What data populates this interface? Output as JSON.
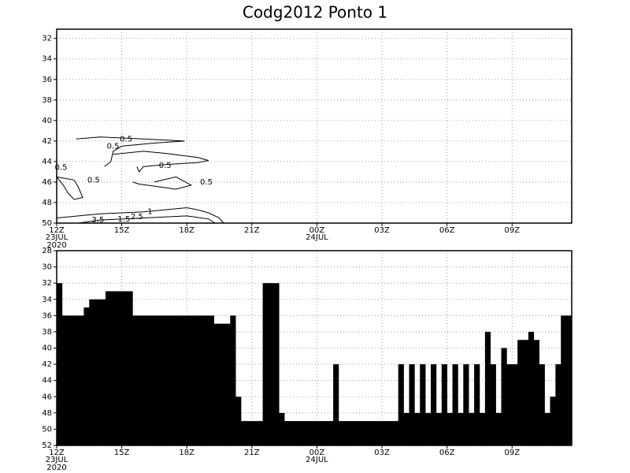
{
  "chart_data": [
    {
      "type": "contour",
      "title": "Codg2012  Ponto 1",
      "xlim": [
        0,
        23.75
      ],
      "ylim": [
        31.1,
        50
      ],
      "xticks": [
        {
          "value": 0,
          "label": "12Z"
        },
        {
          "value": 3,
          "label": "15Z"
        },
        {
          "value": 6,
          "label": "18Z"
        },
        {
          "value": 9,
          "label": "21Z"
        },
        {
          "value": 12,
          "label": "00Z"
        },
        {
          "value": 15,
          "label": "03Z"
        },
        {
          "value": 18,
          "label": "06Z"
        },
        {
          "value": 21,
          "label": "09Z"
        }
      ],
      "x_date_labels": [
        {
          "value": 0,
          "label": "23JUL"
        },
        {
          "value": 12,
          "label": "24JUL"
        }
      ],
      "x_year_label": {
        "value": 0,
        "label": "2020"
      },
      "yticks": [
        32,
        34,
        36,
        38,
        40,
        42,
        44,
        46,
        48,
        50
      ],
      "grid": true,
      "contours": [
        {
          "x": [
            0.9,
            2,
            4,
            5.9,
            4.5,
            3,
            2.6,
            2.5,
            2.2
          ],
          "y": [
            41.8,
            41.6,
            41.8,
            42,
            42.2,
            42.5,
            43,
            44,
            44.5
          ]
        },
        {
          "x": [
            2.6,
            4,
            5,
            6.5,
            7,
            6.5,
            5,
            4,
            3.8,
            3.7
          ],
          "y": [
            43.3,
            43,
            43.2,
            43.6,
            43.9,
            44.1,
            44.3,
            44.5,
            45,
            44.5
          ]
        },
        {
          "x": [
            0,
            0.8,
            1,
            1.2,
            0.8,
            0.5,
            0.3,
            0
          ],
          "y": [
            45.5,
            45.8,
            46.5,
            47.5,
            47.7,
            47,
            46.3,
            45.5
          ]
        },
        {
          "x": [
            4.5,
            5.5,
            6.2,
            5.5,
            4.5,
            3.8,
            3.5
          ],
          "y": [
            46,
            45.5,
            46.3,
            46.7,
            46.4,
            46.2,
            46
          ]
        },
        {
          "x": [
            0,
            1,
            2,
            3,
            4,
            5,
            6,
            6.5,
            7,
            7.5,
            7.7
          ],
          "y": [
            49.5,
            49.3,
            49.1,
            49,
            48.9,
            48.7,
            48.5,
            48.7,
            49,
            49.5,
            50
          ]
        },
        {
          "x": [
            1,
            2,
            4,
            6,
            7,
            7.3
          ],
          "y": [
            50,
            49.7,
            49.5,
            49.3,
            49.6,
            50
          ]
        }
      ],
      "contour_labels": [
        {
          "text": "0.5",
          "x": 3.2,
          "y": 41.8
        },
        {
          "text": "0.5",
          "x": 2.6,
          "y": 42.5
        },
        {
          "text": "0.5",
          "x": 5,
          "y": 44.4
        },
        {
          "text": "0.5",
          "x": 6.9,
          "y": 46
        },
        {
          "text": "0.5",
          "x": 1.7,
          "y": 45.8
        },
        {
          "text": "0.5",
          "x": 0.2,
          "y": 44.6
        },
        {
          "text": "1",
          "x": 4.3,
          "y": 48.9
        },
        {
          "text": "3.5",
          "x": 1.9,
          "y": 49.7
        },
        {
          "text": "1.5",
          "x": 3.1,
          "y": 49.6
        },
        {
          "text": "2.5",
          "x": 3.7,
          "y": 49.4
        }
      ]
    },
    {
      "type": "bar",
      "xlim": [
        0,
        23.75
      ],
      "ylim": [
        28,
        52
      ],
      "xticks": [
        {
          "value": 0,
          "label": "12Z"
        },
        {
          "value": 3,
          "label": "15Z"
        },
        {
          "value": 6,
          "label": "18Z"
        },
        {
          "value": 9,
          "label": "21Z"
        },
        {
          "value": 12,
          "label": "00Z"
        },
        {
          "value": 15,
          "label": "03Z"
        },
        {
          "value": 18,
          "label": "06Z"
        },
        {
          "value": 21,
          "label": "09Z"
        }
      ],
      "x_date_labels": [
        {
          "value": 0,
          "label": "23JUL"
        },
        {
          "value": 12,
          "label": "24JUL"
        }
      ],
      "x_year_label": {
        "value": 0,
        "label": "2020"
      },
      "yticks": [
        28,
        30,
        32,
        34,
        36,
        38,
        40,
        42,
        44,
        46,
        48,
        50,
        52
      ],
      "grid": true,
      "color": "#000000",
      "x": [
        0,
        0.25,
        0.5,
        0.75,
        1,
        1.25,
        1.5,
        1.75,
        2,
        2.25,
        2.5,
        2.75,
        3,
        3.25,
        3.5,
        3.75,
        4,
        4.25,
        4.5,
        4.75,
        5,
        5.25,
        5.5,
        5.75,
        6,
        6.25,
        6.5,
        6.75,
        7,
        7.25,
        7.5,
        7.75,
        8,
        8.25,
        8.5,
        8.75,
        9,
        9.25,
        9.5,
        9.75,
        10,
        10.25,
        10.5,
        10.75,
        11,
        11.25,
        11.5,
        11.75,
        12,
        12.25,
        12.5,
        12.75,
        13,
        13.25,
        13.5,
        13.75,
        14,
        14.25,
        14.5,
        14.75,
        15,
        15.25,
        15.5,
        15.75,
        16,
        16.25,
        16.5,
        16.75,
        17,
        17.25,
        17.5,
        17.75,
        18,
        18.25,
        18.5,
        18.75,
        19,
        19.25,
        19.5,
        19.75,
        20,
        20.25,
        20.5,
        20.75,
        21,
        21.25,
        21.5,
        21.75,
        22,
        22.25,
        22.5,
        22.75,
        23,
        23.25,
        23.5
      ],
      "values": [
        32,
        36,
        36,
        36,
        36,
        35,
        34,
        34,
        34,
        33,
        33,
        33,
        33,
        33,
        36,
        36,
        36,
        36,
        36,
        36,
        36,
        36,
        36,
        36,
        36,
        36,
        36,
        36,
        36,
        37,
        37,
        37,
        36,
        46,
        49,
        49,
        49,
        49,
        32,
        32,
        32,
        48,
        49,
        49,
        49,
        49,
        49,
        49,
        49,
        49,
        49,
        42,
        49,
        49,
        49,
        49,
        49,
        49,
        49,
        49,
        49,
        49,
        49,
        42,
        48,
        42,
        48,
        42,
        48,
        42,
        48,
        42,
        48,
        42,
        48,
        42,
        48,
        42,
        48,
        38,
        42,
        48,
        40,
        42,
        42,
        39,
        39,
        38,
        39,
        42,
        48,
        46,
        42,
        36,
        36
      ]
    }
  ]
}
